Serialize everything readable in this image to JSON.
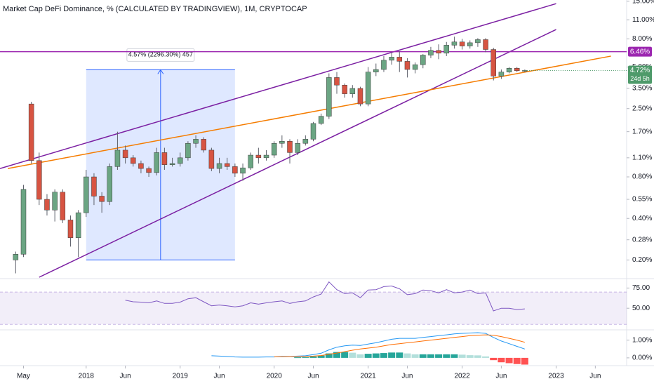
{
  "chart_data": [
    {
      "type": "candlestick",
      "title": "Market Cap DeFi Dominance, % (CALCULATED BY TRADINGVIEW), 1M, CRYPTOCAP",
      "log_scale": true,
      "x": [
        "2017-04",
        "2017-05",
        "2017-06",
        "2017-07",
        "2017-08",
        "2017-09",
        "2017-10",
        "2017-11",
        "2017-12",
        "2018-01",
        "2018-02",
        "2018-03",
        "2018-04",
        "2018-05",
        "2018-06",
        "2018-07",
        "2018-08",
        "2018-09",
        "2018-10",
        "2018-11",
        "2018-12",
        "2019-01",
        "2019-02",
        "2019-03",
        "2019-04",
        "2019-05",
        "2019-06",
        "2019-07",
        "2019-08",
        "2019-09",
        "2019-10",
        "2019-11",
        "2019-12",
        "2020-01",
        "2020-02",
        "2020-03",
        "2020-04",
        "2020-05",
        "2020-06",
        "2020-07",
        "2020-08",
        "2020-09",
        "2020-10",
        "2020-11",
        "2020-12",
        "2021-01",
        "2021-02",
        "2021-03",
        "2021-04",
        "2021-05",
        "2021-06",
        "2021-07",
        "2021-08",
        "2021-09",
        "2021-10",
        "2021-11",
        "2021-12",
        "2022-01",
        "2022-02",
        "2022-03",
        "2022-04",
        "2022-05",
        "2022-06",
        "2022-07",
        "2022-08",
        "2022-09"
      ],
      "open": [
        0.2,
        0.22,
        2.7,
        1.05,
        0.55,
        0.46,
        0.62,
        0.39,
        0.29,
        0.44,
        0.8,
        0.58,
        0.53,
        0.95,
        1.25,
        1.1,
        1.0,
        0.92,
        0.86,
        1.2,
        0.98,
        1.0,
        1.1,
        1.4,
        1.5,
        1.25,
        0.92,
        1.0,
        0.95,
        0.85,
        0.93,
        1.15,
        1.1,
        1.15,
        1.4,
        1.45,
        1.2,
        1.4,
        1.5,
        1.95,
        2.2,
        4.2,
        3.7,
        3.2,
        3.5,
        2.7,
        4.6,
        4.8,
        5.6,
        5.9,
        5.5,
        4.8,
        5.2,
        6.1,
        6.6,
        6.3,
        7.2,
        7.6,
        7.1,
        7.5,
        7.9,
        6.7,
        4.3,
        4.6,
        4.9,
        4.7
      ],
      "high": [
        0.23,
        0.7,
        2.8,
        1.2,
        0.6,
        0.65,
        0.65,
        0.42,
        0.46,
        0.9,
        0.85,
        0.62,
        1.0,
        1.7,
        1.35,
        1.15,
        1.05,
        0.95,
        1.3,
        1.3,
        1.1,
        1.2,
        1.45,
        1.6,
        1.55,
        1.3,
        1.1,
        1.1,
        1.0,
        1.0,
        1.2,
        1.3,
        1.25,
        1.45,
        1.6,
        1.5,
        1.5,
        1.6,
        2.0,
        2.3,
        4.5,
        4.6,
        3.8,
        3.7,
        3.6,
        5.0,
        5.3,
        6.0,
        6.4,
        6.5,
        5.8,
        5.4,
        6.2,
        7.0,
        7.3,
        7.6,
        8.3,
        8.0,
        7.8,
        8.1,
        8.1,
        6.9,
        4.8,
        5.0,
        5.0,
        4.8
      ],
      "low": [
        0.16,
        0.21,
        1.0,
        0.5,
        0.42,
        0.38,
        0.37,
        0.25,
        0.21,
        0.41,
        0.5,
        0.44,
        0.5,
        0.9,
        1.0,
        0.95,
        0.85,
        0.8,
        0.82,
        0.9,
        0.95,
        0.95,
        1.05,
        1.3,
        1.2,
        0.88,
        0.85,
        0.9,
        0.8,
        0.75,
        0.9,
        1.0,
        1.05,
        1.1,
        1.3,
        1.0,
        1.15,
        1.35,
        1.45,
        1.9,
        2.1,
        3.2,
        3.0,
        3.0,
        2.6,
        2.6,
        4.3,
        4.6,
        5.2,
        4.6,
        4.2,
        4.5,
        4.9,
        5.8,
        5.7,
        6.0,
        6.8,
        6.7,
        6.8,
        7.0,
        6.4,
        4.0,
        4.1,
        4.5,
        4.6,
        4.6
      ],
      "close": [
        0.22,
        0.65,
        1.05,
        0.55,
        0.46,
        0.62,
        0.39,
        0.29,
        0.44,
        0.8,
        0.58,
        0.53,
        0.95,
        1.25,
        1.1,
        1.0,
        0.92,
        0.86,
        1.2,
        0.98,
        1.0,
        1.1,
        1.4,
        1.5,
        1.25,
        0.92,
        1.0,
        0.95,
        0.85,
        0.93,
        1.15,
        1.1,
        1.15,
        1.4,
        1.45,
        1.2,
        1.4,
        1.5,
        1.95,
        2.2,
        4.2,
        3.7,
        3.2,
        3.5,
        2.7,
        4.6,
        4.8,
        5.6,
        5.9,
        5.5,
        4.8,
        5.2,
        6.1,
        6.6,
        6.3,
        7.2,
        7.6,
        7.1,
        7.5,
        7.9,
        6.7,
        4.3,
        4.6,
        4.9,
        4.7,
        4.72
      ],
      "up_color": "#6ba583",
      "down_color": "#d75442",
      "wick_color": "#5d606b",
      "xlim": [
        "2017-02",
        "2023-10"
      ],
      "xticks": [
        {
          "value": "2017-05",
          "label": "May"
        },
        {
          "value": "2018-01",
          "label": "2018"
        },
        {
          "value": "2018-06",
          "label": "Jun"
        },
        {
          "value": "2019-01",
          "label": "2019"
        },
        {
          "value": "2019-06",
          "label": "Jun"
        },
        {
          "value": "2020-01",
          "label": "2020"
        },
        {
          "value": "2020-06",
          "label": "Jun"
        },
        {
          "value": "2021-01",
          "label": "2021"
        },
        {
          "value": "2021-06",
          "label": "Jun"
        },
        {
          "value": "2022-01",
          "label": "2022"
        },
        {
          "value": "2022-06",
          "label": "Jun"
        },
        {
          "value": "2023-01",
          "label": "2023"
        },
        {
          "value": "2023-06",
          "label": "Jun"
        }
      ],
      "ylim": [
        0.15,
        15.3
      ],
      "yticks": [
        {
          "value": 15,
          "label": "15.00%"
        },
        {
          "value": 11,
          "label": "11.00%"
        },
        {
          "value": 8,
          "label": "8.00%"
        },
        {
          "value": 5,
          "label": "5.00%"
        },
        {
          "value": 3.5,
          "label": "3.50%"
        },
        {
          "value": 2.5,
          "label": "2.50%"
        },
        {
          "value": 1.7,
          "label": "1.70%"
        },
        {
          "value": 1.1,
          "label": "1.10%"
        },
        {
          "value": 0.8,
          "label": "0.80%"
        },
        {
          "value": 0.55,
          "label": "0.55%"
        },
        {
          "value": 0.4,
          "label": "0.40%"
        },
        {
          "value": 0.28,
          "label": "0.28%"
        },
        {
          "value": 0.2,
          "label": "0.20%"
        }
      ],
      "hline": {
        "value": 6.46,
        "label": "6.46%",
        "color": "#9c27b0"
      },
      "last": {
        "value": 4.72,
        "label": "4.72%",
        "sublabel": "24d 5h",
        "color": "#4e9a6a"
      },
      "measure": {
        "label": "4.57% (2296.30%) 457",
        "x": [
          "2018-01",
          "2019-08"
        ],
        "y": [
          0.2,
          4.78
        ],
        "color": "#2962ff"
      },
      "trendlines": [
        {
          "color": "#7b1fa2",
          "x": [
            "2017-02",
            "2023-01"
          ],
          "y": [
            0.92,
            14.4
          ]
        },
        {
          "color": "#7b1fa2",
          "x": [
            "2017-07",
            "2023-01"
          ],
          "y": [
            0.15,
            9.35
          ]
        },
        {
          "color": "#f57c00",
          "x": [
            "2017-03",
            "2023-08"
          ],
          "y": [
            0.92,
            6.0
          ]
        }
      ]
    },
    {
      "type": "line",
      "color": "#7e57c2",
      "values": [
        null,
        null,
        null,
        null,
        null,
        null,
        null,
        null,
        null,
        null,
        null,
        null,
        null,
        null,
        60,
        58,
        57.5,
        56.7,
        59,
        56,
        56,
        57.5,
        61.7,
        63,
        58,
        53,
        54,
        53,
        51.7,
        53,
        56.7,
        55,
        56.7,
        58,
        59,
        56,
        58,
        59,
        64,
        67.5,
        82.5,
        73,
        68,
        69,
        63,
        72.5,
        73,
        76.7,
        77.5,
        74,
        66.7,
        68,
        72.5,
        71.7,
        69,
        73,
        69,
        70,
        72.5,
        68,
        69,
        46.7,
        50,
        50,
        48.3,
        49.2
      ],
      "band": [
        30,
        70
      ],
      "band_color": "#7e57c2",
      "ylim": [
        25,
        84
      ],
      "yticks": [
        {
          "value": 75,
          "label": "75.00"
        },
        {
          "value": 50,
          "label": "50.00"
        }
      ]
    },
    {
      "type": "macd",
      "macd": {
        "color": "#2196f3",
        "values": [
          null,
          null,
          null,
          null,
          null,
          null,
          null,
          null,
          null,
          null,
          null,
          null,
          null,
          null,
          null,
          null,
          null,
          null,
          null,
          null,
          null,
          null,
          null,
          null,
          null,
          0.12,
          0.1,
          0.08,
          0.05,
          0.04,
          0.04,
          0.04,
          0.05,
          0.05,
          0.08,
          0.08,
          0.1,
          0.12,
          0.18,
          0.26,
          0.45,
          0.6,
          0.68,
          0.72,
          0.7,
          0.78,
          0.85,
          0.95,
          1.05,
          1.1,
          1.1,
          1.1,
          1.15,
          1.2,
          1.25,
          1.3,
          1.35,
          1.38,
          1.4,
          1.42,
          1.38,
          1.15,
          0.95,
          0.8,
          0.65,
          0.5
        ]
      },
      "signal": {
        "color": "#ff6d00",
        "values": [
          null,
          null,
          null,
          null,
          null,
          null,
          null,
          null,
          null,
          null,
          null,
          null,
          null,
          null,
          null,
          null,
          null,
          null,
          null,
          null,
          null,
          null,
          null,
          null,
          null,
          null,
          null,
          null,
          null,
          null,
          null,
          null,
          null,
          0.06,
          0.06,
          0.07,
          0.07,
          0.08,
          0.1,
          0.13,
          0.2,
          0.27,
          0.35,
          0.43,
          0.5,
          0.55,
          0.6,
          0.68,
          0.75,
          0.8,
          0.85,
          0.9,
          0.95,
          1.0,
          1.05,
          1.1,
          1.15,
          1.2,
          1.25,
          1.28,
          1.3,
          1.28,
          1.2,
          1.1,
          1.0,
          0.88
        ]
      },
      "histogram": {
        "colors": [
          "#26a69a",
          "#b2dfdb",
          "#ffcdd2",
          "#ff5252"
        ],
        "values": [
          null,
          null,
          null,
          null,
          null,
          null,
          null,
          null,
          null,
          null,
          null,
          null,
          null,
          null,
          null,
          null,
          null,
          null,
          null,
          null,
          null,
          null,
          null,
          null,
          null,
          null,
          null,
          null,
          null,
          null,
          null,
          null,
          null,
          null,
          null,
          null,
          0.03,
          0.04,
          0.08,
          0.13,
          0.25,
          0.33,
          0.33,
          0.29,
          0.2,
          0.23,
          0.25,
          0.27,
          0.3,
          0.3,
          0.25,
          0.2,
          0.2,
          0.2,
          0.2,
          0.2,
          0.2,
          0.18,
          0.15,
          0.14,
          0.08,
          -0.13,
          -0.25,
          -0.3,
          -0.35,
          -0.38
        ]
      },
      "ylim": [
        -0.4,
        1.5
      ],
      "yticks": [
        {
          "value": 1,
          "label": "1.00%"
        },
        {
          "value": 0,
          "label": "0.00%"
        }
      ]
    }
  ]
}
